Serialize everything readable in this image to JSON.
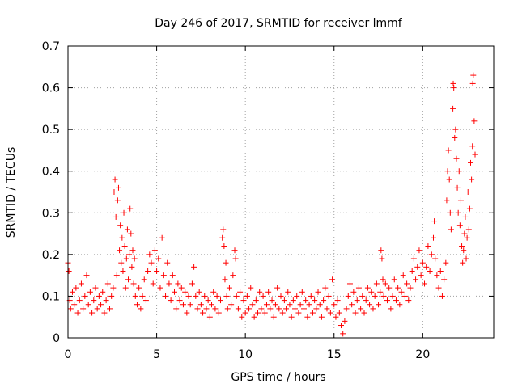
{
  "chart_data": {
    "type": "scatter",
    "title": "Day 246 of 2017, SRMTID for receiver lmmf",
    "xlabel": "GPS time / hours",
    "ylabel": "SRMTID / TECUs",
    "xlim": [
      0,
      24
    ],
    "ylim": [
      0,
      0.7
    ],
    "x_ticks": [
      "0",
      "5",
      "10",
      "15",
      "20"
    ],
    "y_ticks": [
      "0",
      "0.1",
      "0.2",
      "0.3",
      "0.4",
      "0.5",
      "0.6",
      "0.7"
    ],
    "grid": true,
    "marker": "+",
    "series": [
      {
        "name": "SRMTID",
        "color": "#ff0000",
        "points": [
          [
            0.0,
            0.18
          ],
          [
            0.05,
            0.16
          ],
          [
            0.1,
            0.09
          ],
          [
            0.15,
            0.07
          ],
          [
            0.25,
            0.11
          ],
          [
            0.35,
            0.08
          ],
          [
            0.45,
            0.12
          ],
          [
            0.55,
            0.06
          ],
          [
            0.65,
            0.09
          ],
          [
            0.75,
            0.13
          ],
          [
            0.85,
            0.07
          ],
          [
            0.95,
            0.1
          ],
          [
            1.05,
            0.15
          ],
          [
            1.15,
            0.08
          ],
          [
            1.25,
            0.11
          ],
          [
            1.35,
            0.06
          ],
          [
            1.45,
            0.09
          ],
          [
            1.55,
            0.12
          ],
          [
            1.65,
            0.07
          ],
          [
            1.75,
            0.1
          ],
          [
            1.85,
            0.08
          ],
          [
            1.95,
            0.11
          ],
          [
            2.05,
            0.06
          ],
          [
            2.15,
            0.09
          ],
          [
            2.25,
            0.13
          ],
          [
            2.35,
            0.07
          ],
          [
            2.45,
            0.1
          ],
          [
            2.55,
            0.12
          ],
          [
            2.6,
            0.35
          ],
          [
            2.65,
            0.38
          ],
          [
            2.7,
            0.29
          ],
          [
            2.75,
            0.15
          ],
          [
            2.8,
            0.33
          ],
          [
            2.85,
            0.36
          ],
          [
            2.9,
            0.21
          ],
          [
            2.95,
            0.27
          ],
          [
            3.0,
            0.18
          ],
          [
            3.05,
            0.24
          ],
          [
            3.1,
            0.16
          ],
          [
            3.15,
            0.3
          ],
          [
            3.2,
            0.22
          ],
          [
            3.25,
            0.12
          ],
          [
            3.3,
            0.19
          ],
          [
            3.35,
            0.26
          ],
          [
            3.4,
            0.14
          ],
          [
            3.45,
            0.2
          ],
          [
            3.5,
            0.31
          ],
          [
            3.55,
            0.25
          ],
          [
            3.6,
            0.17
          ],
          [
            3.65,
            0.21
          ],
          [
            3.7,
            0.13
          ],
          [
            3.75,
            0.19
          ],
          [
            3.8,
            0.1
          ],
          [
            3.9,
            0.08
          ],
          [
            4.0,
            0.12
          ],
          [
            4.1,
            0.07
          ],
          [
            4.2,
            0.1
          ],
          [
            4.3,
            0.14
          ],
          [
            4.4,
            0.09
          ],
          [
            4.5,
            0.16
          ],
          [
            4.6,
            0.2
          ],
          [
            4.7,
            0.18
          ],
          [
            4.8,
            0.13
          ],
          [
            4.9,
            0.21
          ],
          [
            5.0,
            0.16
          ],
          [
            5.1,
            0.19
          ],
          [
            5.2,
            0.12
          ],
          [
            5.3,
            0.24
          ],
          [
            5.4,
            0.15
          ],
          [
            5.5,
            0.1
          ],
          [
            5.6,
            0.18
          ],
          [
            5.7,
            0.13
          ],
          [
            5.8,
            0.09
          ],
          [
            5.9,
            0.15
          ],
          [
            6.0,
            0.11
          ],
          [
            6.1,
            0.07
          ],
          [
            6.2,
            0.13
          ],
          [
            6.3,
            0.09
          ],
          [
            6.4,
            0.12
          ],
          [
            6.5,
            0.08
          ],
          [
            6.6,
            0.11
          ],
          [
            6.7,
            0.06
          ],
          [
            6.8,
            0.1
          ],
          [
            6.9,
            0.08
          ],
          [
            7.0,
            0.13
          ],
          [
            7.1,
            0.17
          ],
          [
            7.2,
            0.1
          ],
          [
            7.3,
            0.07
          ],
          [
            7.4,
            0.11
          ],
          [
            7.5,
            0.08
          ],
          [
            7.6,
            0.06
          ],
          [
            7.7,
            0.1
          ],
          [
            7.8,
            0.07
          ],
          [
            7.9,
            0.09
          ],
          [
            8.0,
            0.05
          ],
          [
            8.1,
            0.08
          ],
          [
            8.2,
            0.11
          ],
          [
            8.3,
            0.07
          ],
          [
            8.4,
            0.1
          ],
          [
            8.5,
            0.06
          ],
          [
            8.6,
            0.09
          ],
          [
            8.7,
            0.24
          ],
          [
            8.75,
            0.26
          ],
          [
            8.8,
            0.22
          ],
          [
            8.85,
            0.14
          ],
          [
            8.9,
            0.18
          ],
          [
            8.95,
            0.1
          ],
          [
            9.0,
            0.07
          ],
          [
            9.1,
            0.12
          ],
          [
            9.2,
            0.08
          ],
          [
            9.3,
            0.15
          ],
          [
            9.4,
            0.21
          ],
          [
            9.45,
            0.19
          ],
          [
            9.5,
            0.1
          ],
          [
            9.6,
            0.07
          ],
          [
            9.7,
            0.11
          ],
          [
            9.8,
            0.05
          ],
          [
            9.9,
            0.09
          ],
          [
            10.0,
            0.06
          ],
          [
            10.1,
            0.1
          ],
          [
            10.2,
            0.07
          ],
          [
            10.3,
            0.12
          ],
          [
            10.4,
            0.08
          ],
          [
            10.5,
            0.05
          ],
          [
            10.6,
            0.09
          ],
          [
            10.7,
            0.06
          ],
          [
            10.8,
            0.11
          ],
          [
            10.9,
            0.07
          ],
          [
            11.0,
            0.1
          ],
          [
            11.1,
            0.06
          ],
          [
            11.2,
            0.08
          ],
          [
            11.3,
            0.11
          ],
          [
            11.4,
            0.07
          ],
          [
            11.5,
            0.09
          ],
          [
            11.6,
            0.05
          ],
          [
            11.7,
            0.08
          ],
          [
            11.8,
            0.12
          ],
          [
            11.9,
            0.07
          ],
          [
            12.0,
            0.1
          ],
          [
            12.1,
            0.06
          ],
          [
            12.2,
            0.09
          ],
          [
            12.3,
            0.07
          ],
          [
            12.4,
            0.11
          ],
          [
            12.5,
            0.08
          ],
          [
            12.6,
            0.05
          ],
          [
            12.7,
            0.09
          ],
          [
            12.8,
            0.07
          ],
          [
            12.9,
            0.1
          ],
          [
            13.0,
            0.06
          ],
          [
            13.1,
            0.08
          ],
          [
            13.2,
            0.11
          ],
          [
            13.3,
            0.07
          ],
          [
            13.4,
            0.09
          ],
          [
            13.5,
            0.05
          ],
          [
            13.6,
            0.08
          ],
          [
            13.7,
            0.1
          ],
          [
            13.8,
            0.06
          ],
          [
            13.9,
            0.09
          ],
          [
            14.0,
            0.07
          ],
          [
            14.1,
            0.11
          ],
          [
            14.2,
            0.08
          ],
          [
            14.3,
            0.05
          ],
          [
            14.4,
            0.09
          ],
          [
            14.5,
            0.12
          ],
          [
            14.6,
            0.07
          ],
          [
            14.7,
            0.1
          ],
          [
            14.8,
            0.06
          ],
          [
            14.9,
            0.14
          ],
          [
            15.0,
            0.08
          ],
          [
            15.1,
            0.05
          ],
          [
            15.2,
            0.09
          ],
          [
            15.3,
            0.06
          ],
          [
            15.4,
            0.03
          ],
          [
            15.5,
            0.01
          ],
          [
            15.6,
            0.04
          ],
          [
            15.7,
            0.07
          ],
          [
            15.8,
            0.1
          ],
          [
            15.9,
            0.13
          ],
          [
            16.0,
            0.08
          ],
          [
            16.1,
            0.11
          ],
          [
            16.2,
            0.06
          ],
          [
            16.3,
            0.09
          ],
          [
            16.4,
            0.12
          ],
          [
            16.5,
            0.07
          ],
          [
            16.6,
            0.1
          ],
          [
            16.7,
            0.06
          ],
          [
            16.8,
            0.09
          ],
          [
            16.9,
            0.12
          ],
          [
            17.0,
            0.08
          ],
          [
            17.1,
            0.11
          ],
          [
            17.2,
            0.07
          ],
          [
            17.3,
            0.1
          ],
          [
            17.4,
            0.13
          ],
          [
            17.5,
            0.08
          ],
          [
            17.6,
            0.11
          ],
          [
            17.65,
            0.21
          ],
          [
            17.7,
            0.19
          ],
          [
            17.75,
            0.14
          ],
          [
            17.8,
            0.1
          ],
          [
            17.9,
            0.13
          ],
          [
            18.0,
            0.09
          ],
          [
            18.1,
            0.12
          ],
          [
            18.2,
            0.07
          ],
          [
            18.3,
            0.1
          ],
          [
            18.4,
            0.14
          ],
          [
            18.5,
            0.09
          ],
          [
            18.6,
            0.12
          ],
          [
            18.7,
            0.08
          ],
          [
            18.8,
            0.11
          ],
          [
            18.9,
            0.15
          ],
          [
            19.0,
            0.1
          ],
          [
            19.1,
            0.13
          ],
          [
            19.2,
            0.09
          ],
          [
            19.3,
            0.12
          ],
          [
            19.4,
            0.16
          ],
          [
            19.5,
            0.19
          ],
          [
            19.6,
            0.14
          ],
          [
            19.7,
            0.17
          ],
          [
            19.8,
            0.21
          ],
          [
            19.9,
            0.15
          ],
          [
            20.0,
            0.18
          ],
          [
            20.1,
            0.13
          ],
          [
            20.2,
            0.17
          ],
          [
            20.3,
            0.22
          ],
          [
            20.4,
            0.16
          ],
          [
            20.5,
            0.2
          ],
          [
            20.6,
            0.24
          ],
          [
            20.65,
            0.28
          ],
          [
            20.7,
            0.19
          ],
          [
            20.8,
            0.15
          ],
          [
            20.9,
            0.12
          ],
          [
            21.0,
            0.16
          ],
          [
            21.1,
            0.1
          ],
          [
            21.2,
            0.14
          ],
          [
            21.3,
            0.18
          ],
          [
            21.35,
            0.33
          ],
          [
            21.4,
            0.4
          ],
          [
            21.45,
            0.45
          ],
          [
            21.5,
            0.38
          ],
          [
            21.55,
            0.3
          ],
          [
            21.6,
            0.26
          ],
          [
            21.65,
            0.35
          ],
          [
            21.7,
            0.55
          ],
          [
            21.72,
            0.61
          ],
          [
            21.75,
            0.6
          ],
          [
            21.8,
            0.48
          ],
          [
            21.85,
            0.5
          ],
          [
            21.9,
            0.43
          ],
          [
            21.95,
            0.36
          ],
          [
            22.0,
            0.3
          ],
          [
            22.05,
            0.4
          ],
          [
            22.1,
            0.27
          ],
          [
            22.15,
            0.33
          ],
          [
            22.2,
            0.22
          ],
          [
            22.25,
            0.18
          ],
          [
            22.3,
            0.21
          ],
          [
            22.35,
            0.25
          ],
          [
            22.4,
            0.29
          ],
          [
            22.45,
            0.19
          ],
          [
            22.5,
            0.24
          ],
          [
            22.55,
            0.35
          ],
          [
            22.6,
            0.26
          ],
          [
            22.65,
            0.31
          ],
          [
            22.7,
            0.42
          ],
          [
            22.75,
            0.38
          ],
          [
            22.8,
            0.46
          ],
          [
            22.82,
            0.61
          ],
          [
            22.85,
            0.63
          ],
          [
            22.9,
            0.52
          ],
          [
            22.95,
            0.44
          ]
        ]
      }
    ]
  }
}
